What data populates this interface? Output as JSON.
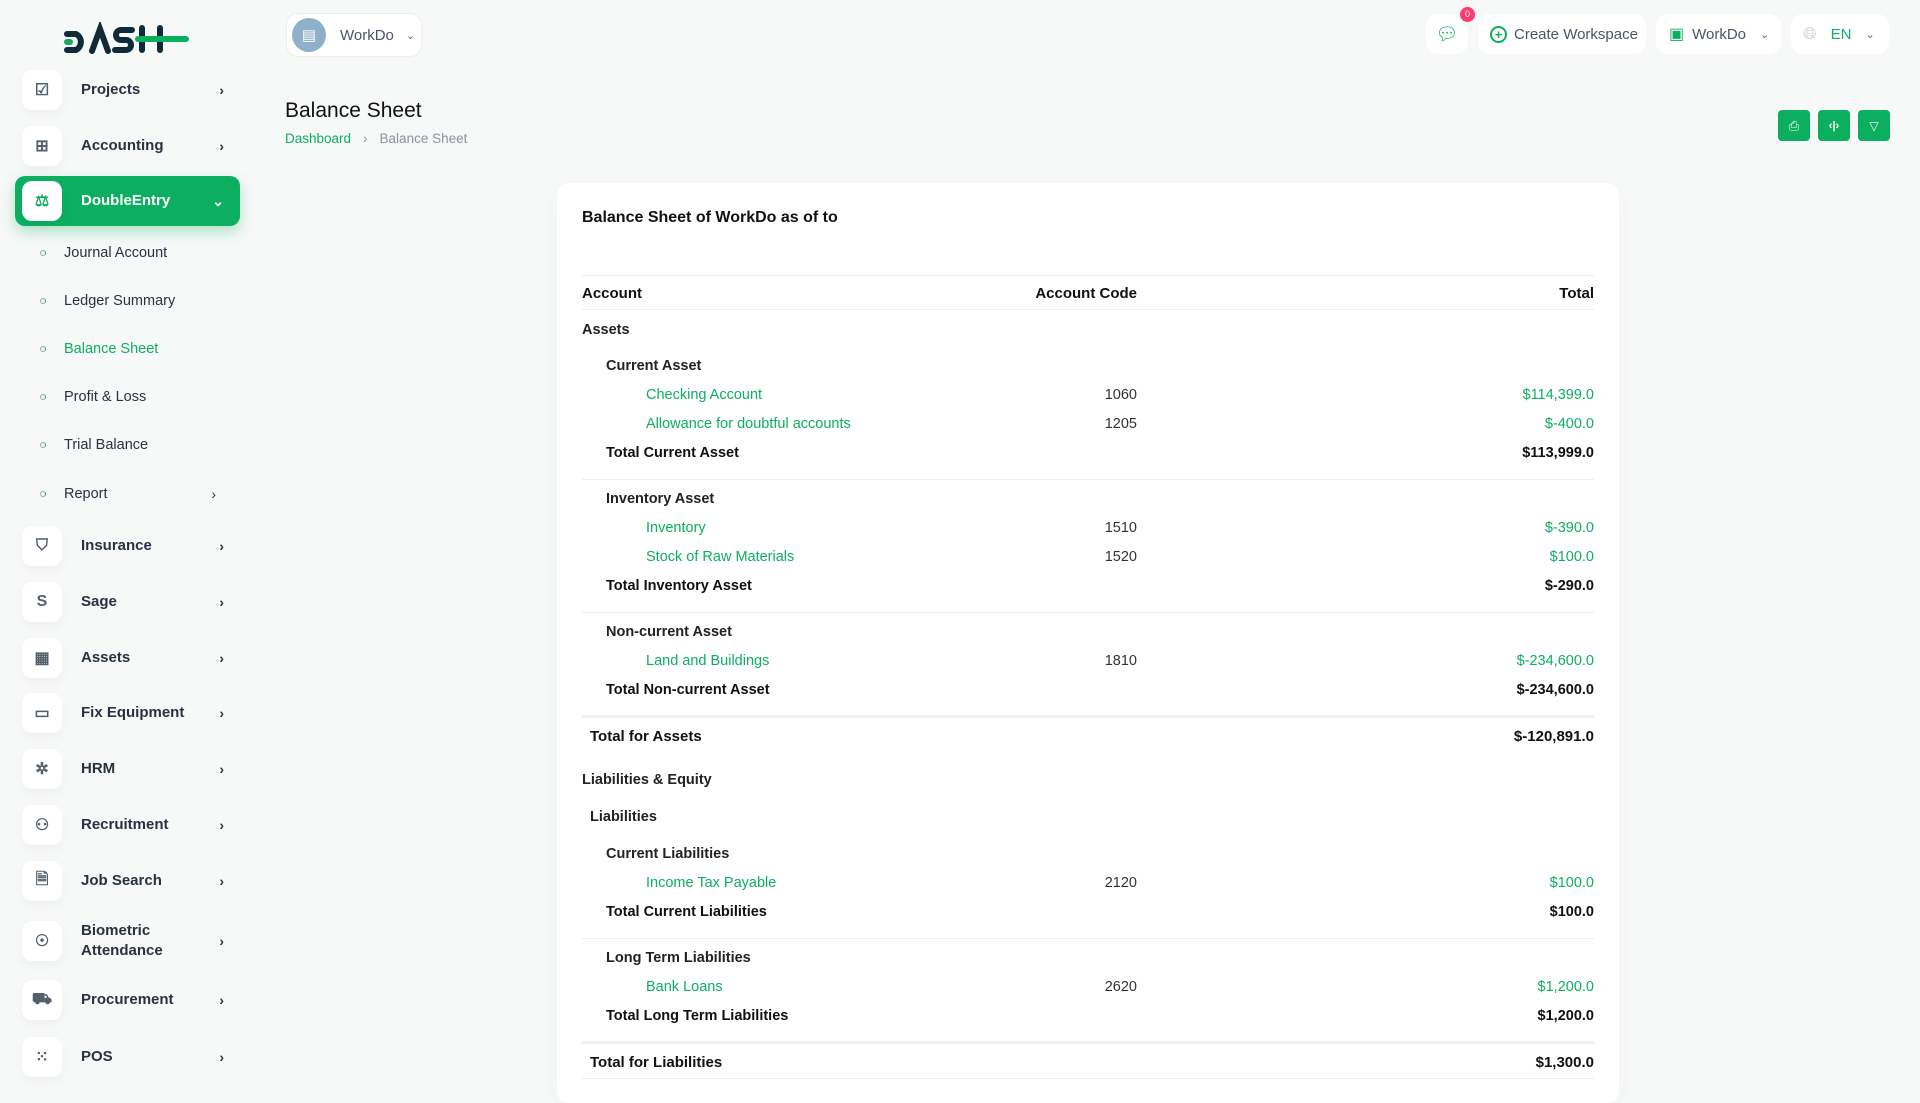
{
  "brand": {
    "logo": "DASH",
    "accent": "#0caf60"
  },
  "workspace_selector": {
    "label": "WorkDo"
  },
  "topbar": {
    "notifications_count": "0",
    "create_workspace": "Create Workspace",
    "workspace": "WorkDo",
    "language": "EN"
  },
  "sidebar": {
    "items": [
      {
        "label": "Projects",
        "icon": "checkbox-icon"
      },
      {
        "label": "Accounting",
        "icon": "grid-plus-icon"
      },
      {
        "label": "DoubleEntry",
        "icon": "scale-icon",
        "active": true
      },
      {
        "label": "Insurance",
        "icon": "shield-icon"
      },
      {
        "label": "Sage",
        "icon": "s-icon"
      },
      {
        "label": "Assets",
        "icon": "calculator-icon"
      },
      {
        "label": "Fix Equipment",
        "icon": "archive-icon"
      },
      {
        "label": "HRM",
        "icon": "users-cycle-icon"
      },
      {
        "label": "Recruitment",
        "icon": "user-plus-icon"
      },
      {
        "label": "Job Search",
        "icon": "file-search-icon"
      },
      {
        "label": "Biometric Attendance",
        "icon": "fingerprint-icon"
      },
      {
        "label": "Procurement",
        "icon": "cart-icon"
      },
      {
        "label": "POS",
        "icon": "dots-grid-icon"
      }
    ],
    "subitems": [
      {
        "label": "Journal Account"
      },
      {
        "label": "Ledger Summary"
      },
      {
        "label": "Balance Sheet",
        "active": true
      },
      {
        "label": "Profit & Loss"
      },
      {
        "label": "Trial Balance"
      },
      {
        "label": "Report"
      }
    ]
  },
  "page": {
    "title": "Balance Sheet",
    "breadcrumb": [
      "Dashboard",
      "Balance Sheet"
    ],
    "actions": [
      "print-icon",
      "code-icon",
      "filter-icon"
    ]
  },
  "report": {
    "title": "Balance Sheet of WorkDo as of to",
    "columns": [
      "Account",
      "Account Code",
      "Total"
    ],
    "rows": [
      {
        "type": "cat",
        "account": "Assets"
      },
      {
        "type": "sub",
        "account": "Current Asset"
      },
      {
        "type": "item",
        "account": "Checking Account",
        "code": "1060",
        "total": "$114,399.0"
      },
      {
        "type": "item",
        "account": "Allowance for doubtful accounts",
        "code": "1205",
        "total": "$-400.0"
      },
      {
        "type": "subtot",
        "account": "Total Current Asset",
        "total": "$113,999.0"
      },
      {
        "type": "sub",
        "account": "Inventory Asset"
      },
      {
        "type": "item",
        "account": "Inventory",
        "code": "1510",
        "total": "$-390.0"
      },
      {
        "type": "item",
        "account": "Stock of Raw Materials",
        "code": "1520",
        "total": "$100.0"
      },
      {
        "type": "subtot",
        "account": "Total Inventory Asset",
        "total": "$-290.0"
      },
      {
        "type": "sub",
        "account": "Non-current Asset"
      },
      {
        "type": "item",
        "account": "Land and Buildings",
        "code": "1810",
        "total": "$-234,600.0"
      },
      {
        "type": "subtot",
        "account": "Total Non-current Asset",
        "total": "$-234,600.0"
      },
      {
        "type": "gtot",
        "account": "Total for Assets",
        "total": "$-120,891.0"
      },
      {
        "type": "cat",
        "account": "Liabilities & Equity"
      },
      {
        "type": "grp",
        "account": "Liabilities"
      },
      {
        "type": "sub",
        "account": "Current Liabilities"
      },
      {
        "type": "item",
        "account": "Income Tax Payable",
        "code": "2120",
        "total": "$100.0"
      },
      {
        "type": "subtot",
        "account": "Total Current Liabilities",
        "total": "$100.0"
      },
      {
        "type": "sub",
        "account": "Long Term Liabilities"
      },
      {
        "type": "item",
        "account": "Bank Loans",
        "code": "2620",
        "total": "$1,200.0"
      },
      {
        "type": "subtot",
        "account": "Total Long Term Liabilities",
        "total": "$1,200.0"
      },
      {
        "type": "gtot",
        "account": "Total for Liabilities",
        "total": "$1,300.0"
      }
    ]
  }
}
